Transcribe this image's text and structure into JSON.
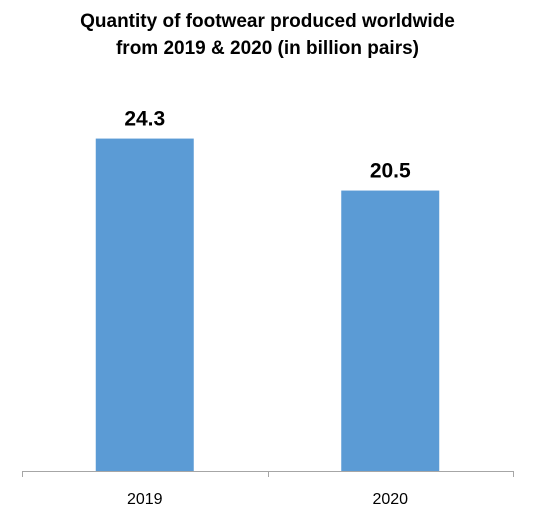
{
  "title_line1": "Quantity of footwear produced worldwide",
  "title_line2": "from 2019 & 2020 (in billion pairs)",
  "chart_data": {
    "type": "bar",
    "title": "Quantity of footwear produced worldwide from 2019 & 2020 (in billion pairs)",
    "categories": [
      "2019",
      "2020"
    ],
    "values": [
      24.3,
      20.5
    ],
    "data_labels": [
      "24.3",
      "20.5"
    ],
    "xlabel": "",
    "ylabel": "",
    "ylim": [
      0,
      25
    ],
    "grid": false,
    "legend": "none",
    "bar_color": "#5B9BD5",
    "axis_color": "#a6a6a6"
  }
}
